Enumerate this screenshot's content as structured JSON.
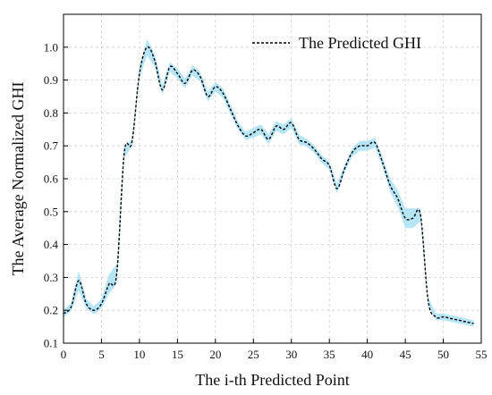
{
  "chart_data": {
    "type": "line",
    "title": "",
    "xlabel": "The i-th Predicted Point",
    "ylabel": "The Average Normalized GHI",
    "xlim": [
      0,
      55
    ],
    "ylim": [
      0.1,
      1.1
    ],
    "x_ticks": [
      0,
      5,
      10,
      15,
      20,
      25,
      30,
      35,
      40,
      45,
      50,
      55
    ],
    "y_ticks": [
      0.1,
      0.2,
      0.3,
      0.4,
      0.5,
      0.6,
      0.7,
      0.8,
      0.9,
      1.0
    ],
    "x_tick_labels": [
      "0",
      "5",
      "10",
      "15",
      "20",
      "25",
      "30",
      "35",
      "40",
      "45",
      "50",
      "55"
    ],
    "y_tick_labels": [
      "0.1",
      "0.2",
      "0.3",
      "0.4",
      "0.5",
      "0.6",
      "0.7",
      "0.8",
      "0.9",
      "1.0"
    ],
    "grid": true,
    "legend_position": "top-right",
    "series": [
      {
        "name": "The Predicted GHI",
        "style": "dashed",
        "color": "#000000",
        "band_color": "#aee3f5",
        "x": [
          0,
          1,
          2,
          3,
          4,
          5,
          6,
          7,
          8,
          9,
          10,
          11,
          12,
          13,
          14,
          15,
          16,
          17,
          18,
          19,
          20,
          21,
          22,
          23,
          24,
          25,
          26,
          27,
          28,
          29,
          30,
          31,
          32,
          33,
          34,
          35,
          36,
          37,
          38,
          39,
          40,
          41,
          42,
          43,
          44,
          45,
          46,
          47,
          48,
          49,
          50,
          51,
          52,
          53,
          54
        ],
        "values": [
          0.19,
          0.21,
          0.29,
          0.22,
          0.2,
          0.22,
          0.28,
          0.31,
          0.68,
          0.71,
          0.92,
          1.0,
          0.96,
          0.87,
          0.94,
          0.92,
          0.89,
          0.93,
          0.91,
          0.85,
          0.88,
          0.86,
          0.81,
          0.76,
          0.73,
          0.74,
          0.75,
          0.72,
          0.76,
          0.75,
          0.77,
          0.72,
          0.71,
          0.69,
          0.66,
          0.64,
          0.57,
          0.63,
          0.68,
          0.7,
          0.7,
          0.71,
          0.65,
          0.58,
          0.54,
          0.48,
          0.48,
          0.49,
          0.23,
          0.18,
          0.18,
          0.175,
          0.17,
          0.165,
          0.16
        ],
        "band": [
          0.012,
          0.012,
          0.03,
          0.015,
          0.012,
          0.015,
          0.03,
          0.03,
          0.015,
          0.012,
          0.015,
          0.025,
          0.02,
          0.015,
          0.015,
          0.015,
          0.015,
          0.015,
          0.015,
          0.015,
          0.015,
          0.015,
          0.015,
          0.012,
          0.012,
          0.015,
          0.015,
          0.015,
          0.015,
          0.015,
          0.015,
          0.015,
          0.012,
          0.012,
          0.012,
          0.012,
          0.015,
          0.012,
          0.012,
          0.015,
          0.015,
          0.015,
          0.015,
          0.02,
          0.025,
          0.03,
          0.03,
          0.02,
          0.012,
          0.01,
          0.01,
          0.01,
          0.01,
          0.01,
          0.01
        ]
      }
    ]
  }
}
